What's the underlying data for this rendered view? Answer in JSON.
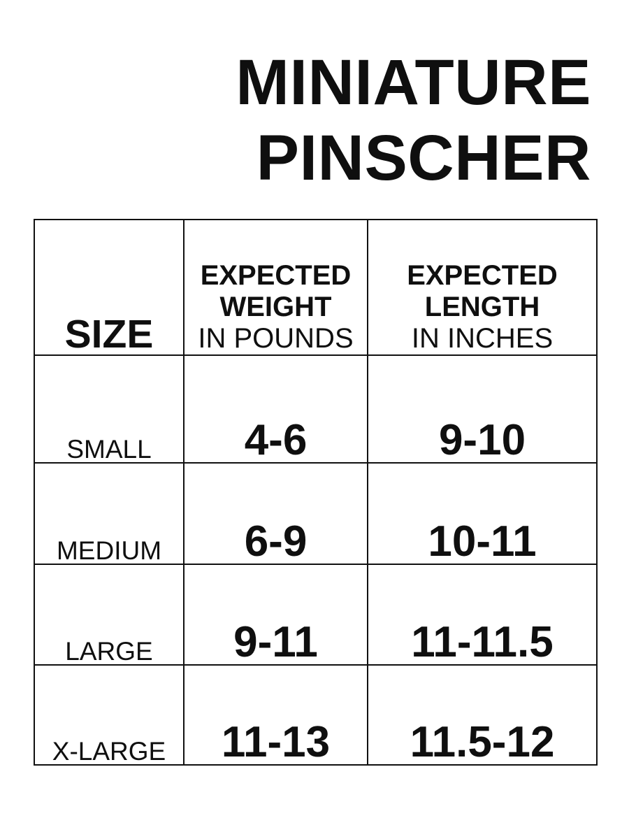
{
  "title": {
    "line1": "MINIATURE",
    "line2": "PINSCHER"
  },
  "table": {
    "columns": [
      {
        "label": "SIZE"
      },
      {
        "label_line1": "EXPECTED",
        "label_line2": "WEIGHT",
        "sublabel": "IN POUNDS"
      },
      {
        "label_line1": "EXPECTED",
        "label_line2": "LENGTH",
        "sublabel": "IN INCHES"
      }
    ],
    "rows": [
      {
        "size": "SMALL",
        "weight": "4-6",
        "length": "9-10"
      },
      {
        "size": "MEDIUM",
        "weight": "6-9",
        "length": "10-11"
      },
      {
        "size": "LARGE",
        "weight": "9-11",
        "length": "11-11.5"
      },
      {
        "size": "X-LARGE",
        "weight": "11-13",
        "length": "11.5-12"
      }
    ]
  },
  "colors": {
    "background": "#ffffff",
    "text": "#0f0f0f",
    "border": "#111111"
  },
  "chart_data": {
    "type": "table",
    "title": "MINIATURE PINSCHER",
    "columns": [
      "SIZE",
      "EXPECTED WEIGHT IN POUNDS",
      "EXPECTED LENGTH IN INCHES"
    ],
    "categories": [
      "SMALL",
      "MEDIUM",
      "LARGE",
      "X-LARGE"
    ],
    "series": [
      {
        "name": "Expected weight (pounds)",
        "values": [
          "4-6",
          "6-9",
          "9-11",
          "11-13"
        ]
      },
      {
        "name": "Expected length (inches)",
        "values": [
          "9-10",
          "10-11",
          "11-11.5",
          "11.5-12"
        ]
      }
    ]
  }
}
